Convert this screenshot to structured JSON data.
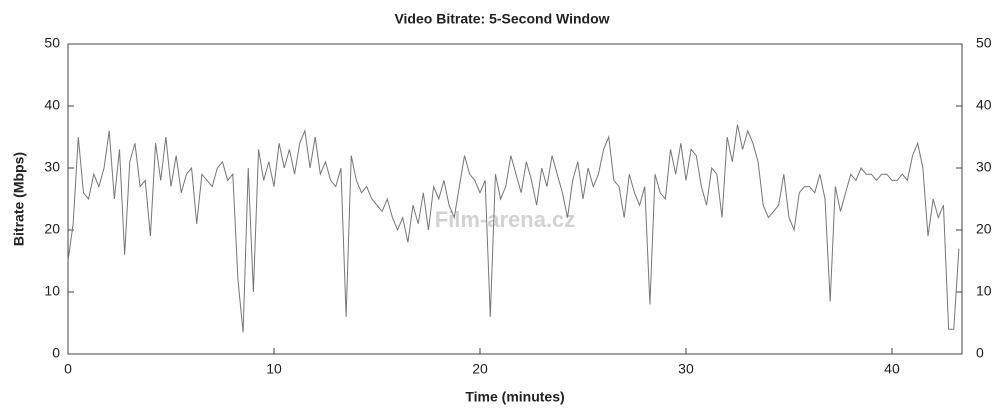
{
  "chart_data": {
    "type": "line",
    "title": "Video Bitrate: 5-Second Window",
    "x_label": "Time (minutes)",
    "y_label": "Bitrate (Mbps)",
    "watermark": "Film-arena.cz",
    "color": "#777777",
    "xlim": [
      0,
      43.4
    ],
    "xticks": [
      0,
      10,
      20,
      30,
      40
    ],
    "ylim": [
      0,
      50
    ],
    "yticks": [
      0,
      10,
      20,
      30,
      40,
      50
    ],
    "y2lim": [
      0,
      50
    ],
    "y2ticks": [
      0,
      10,
      20,
      30,
      40,
      50
    ],
    "grid": false,
    "x": [
      0,
      0.25,
      0.5,
      0.75,
      1,
      1.25,
      1.5,
      1.75,
      2,
      2.25,
      2.5,
      2.75,
      3,
      3.25,
      3.5,
      3.75,
      4,
      4.25,
      4.5,
      4.75,
      5,
      5.25,
      5.5,
      5.75,
      6,
      6.25,
      6.5,
      6.75,
      7,
      7.25,
      7.5,
      7.75,
      8,
      8.25,
      8.5,
      8.75,
      9,
      9.25,
      9.5,
      9.75,
      10,
      10.25,
      10.5,
      10.75,
      11,
      11.25,
      11.5,
      11.75,
      12,
      12.25,
      12.5,
      12.75,
      13,
      13.25,
      13.5,
      13.75,
      14,
      14.25,
      14.5,
      14.75,
      15,
      15.25,
      15.5,
      15.75,
      16,
      16.25,
      16.5,
      16.75,
      17,
      17.25,
      17.5,
      17.75,
      18,
      18.25,
      18.5,
      18.75,
      19,
      19.25,
      19.5,
      19.75,
      20,
      20.25,
      20.5,
      20.75,
      21,
      21.25,
      21.5,
      21.75,
      22,
      22.25,
      22.5,
      22.75,
      23,
      23.25,
      23.5,
      23.75,
      24,
      24.25,
      24.5,
      24.75,
      25,
      25.25,
      25.5,
      25.75,
      26,
      26.25,
      26.5,
      26.75,
      27,
      27.25,
      27.5,
      27.75,
      28,
      28.25,
      28.5,
      28.75,
      29,
      29.25,
      29.5,
      29.75,
      30,
      30.25,
      30.5,
      30.75,
      31,
      31.25,
      31.5,
      31.75,
      32,
      32.25,
      32.5,
      32.75,
      33,
      33.25,
      33.5,
      33.75,
      34,
      34.25,
      34.5,
      34.75,
      35,
      35.25,
      35.5,
      35.75,
      36,
      36.25,
      36.5,
      36.75,
      37,
      37.25,
      37.5,
      37.75,
      38,
      38.25,
      38.5,
      38.75,
      39,
      39.25,
      39.5,
      39.75,
      40,
      40.25,
      40.5,
      40.75,
      41,
      41.25,
      41.5,
      41.75,
      42,
      42.25,
      42.5,
      42.75,
      43,
      43.25
    ],
    "values": [
      15,
      21,
      35,
      26,
      25,
      29,
      27,
      30,
      36,
      25,
      33,
      16,
      31,
      34,
      27,
      28,
      19,
      34,
      28,
      35,
      27,
      32,
      26,
      29,
      30,
      21,
      29,
      28,
      27,
      30,
      31,
      28,
      29,
      12,
      3.5,
      30,
      10,
      33,
      28,
      31,
      27,
      34,
      30,
      33,
      29,
      34,
      36,
      30,
      35,
      29,
      31,
      28,
      27,
      30,
      6,
      32,
      28,
      26,
      27,
      25,
      24,
      23,
      25,
      22,
      20,
      22,
      18,
      24,
      21,
      26,
      20,
      27,
      25,
      28,
      24,
      22,
      27,
      32,
      29,
      28,
      26,
      28,
      6,
      29,
      25,
      27,
      32,
      29,
      26,
      31,
      28,
      24,
      30,
      27,
      32,
      29,
      26,
      22,
      28,
      31,
      25,
      30,
      27,
      29,
      33,
      35,
      28,
      27,
      22,
      29,
      26,
      24,
      27,
      8,
      29,
      26,
      25,
      33,
      29,
      34,
      28,
      33,
      32,
      27,
      24,
      30,
      29,
      22,
      35,
      31,
      37,
      33,
      36,
      34,
      31,
      24,
      22,
      23,
      24,
      29,
      22,
      20,
      26,
      27,
      27,
      26,
      29,
      25,
      8.5,
      27,
      23,
      26,
      29,
      28,
      30,
      29,
      29,
      28,
      29,
      29,
      28,
      28,
      29,
      28,
      32,
      34,
      30,
      19,
      25,
      22,
      24,
      4,
      4,
      17
    ]
  }
}
